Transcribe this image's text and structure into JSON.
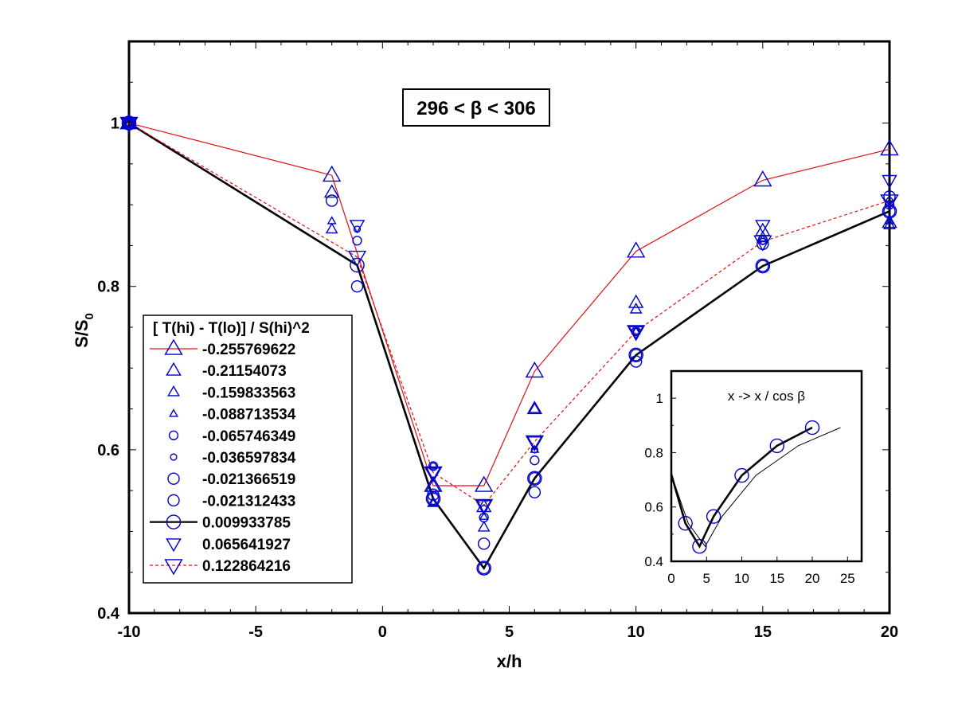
{
  "chart_data": [
    {
      "type": "scatter",
      "xlabel": "x/h",
      "ylabel": "S/S",
      "ylabel_sub": "0",
      "xlim": [
        -10,
        20
      ],
      "ylim": [
        0.4,
        1.1
      ],
      "xticks": [
        -10,
        -5,
        0,
        5,
        10,
        15,
        20
      ],
      "yticks": [
        0.4,
        0.6,
        0.8,
        1
      ],
      "ytick_labels": [
        "0.4",
        "0.6",
        "0.8",
        "1"
      ],
      "annotation": "296 < β < 306",
      "legend_title": "[ T(hi) - T(lo)] / S(hi)^2",
      "legend_position": "center-left",
      "marker_color": "#0000cc",
      "series": [
        {
          "name": "-0.255769622",
          "marker": "triangle-up",
          "size": "large",
          "line": "solid",
          "line_color": "#e01010",
          "x": [
            -10,
            -2,
            2,
            4,
            6,
            10,
            15,
            20
          ],
          "y": [
            1.0,
            0.936,
            0.556,
            0.556,
            0.696,
            0.843,
            0.93,
            0.968
          ]
        },
        {
          "name": "-0.21154073",
          "marker": "triangle-up",
          "size": "medium",
          "line": "none",
          "x": [
            -10,
            -2,
            2,
            4,
            6,
            10,
            15,
            20
          ],
          "y": [
            1.0,
            0.915,
            0.555,
            0.53,
            0.65,
            0.78,
            0.868,
            0.878
          ]
        },
        {
          "name": "-0.159833563",
          "marker": "triangle-up",
          "size": "small",
          "line": "none",
          "x": [
            -10,
            -2,
            2,
            4,
            6,
            10,
            15,
            20
          ],
          "y": [
            1.0,
            0.87,
            0.535,
            0.505,
            0.65,
            0.772,
            0.86,
            0.875
          ]
        },
        {
          "name": "-0.088713534",
          "marker": "triangle-up",
          "size": "tiny",
          "line": "none",
          "x": [
            -10,
            -2,
            2,
            4,
            6,
            10,
            15,
            20
          ],
          "y": [
            1.0,
            0.88,
            0.535,
            0.518,
            0.6,
            0.745,
            0.858,
            0.88
          ]
        },
        {
          "name": "-0.065746349",
          "marker": "circle",
          "size": "small",
          "line": "none",
          "x": [
            -10,
            -1,
            2,
            4,
            6,
            10,
            15,
            20
          ],
          "y": [
            1.0,
            0.856,
            0.58,
            0.517,
            0.587,
            0.745,
            0.857,
            0.9
          ]
        },
        {
          "name": "-0.036597834",
          "marker": "circle",
          "size": "tiny",
          "line": "none",
          "x": [
            -10,
            -1,
            2,
            4,
            6,
            10,
            15,
            20
          ],
          "y": [
            1.0,
            0.87,
            0.58,
            0.528,
            0.6,
            0.745,
            0.855,
            0.905
          ]
        },
        {
          "name": "-0.021366519",
          "marker": "circle",
          "size": "medium",
          "line": "none",
          "x": [
            -10,
            -2,
            2,
            4,
            6,
            10,
            15,
            20
          ],
          "y": [
            1.0,
            0.905,
            0.545,
            0.485,
            0.548,
            0.708,
            0.852,
            0.91
          ]
        },
        {
          "name": "-0.021312433",
          "marker": "circle",
          "size": "medium",
          "line": "none",
          "x": [
            -10,
            -1,
            2,
            4,
            6,
            10,
            15,
            20
          ],
          "y": [
            1.0,
            0.8,
            0.54,
            0.455,
            0.565,
            0.716,
            0.825,
            0.892
          ]
        },
        {
          "name": "0.009933785",
          "marker": "circle",
          "size": "large",
          "line": "solid-thick",
          "line_color": "#000000",
          "x": [
            -10,
            -1,
            2,
            4,
            6,
            10,
            15,
            20
          ],
          "y": [
            1.0,
            0.826,
            0.54,
            0.455,
            0.565,
            0.716,
            0.825,
            0.892
          ]
        },
        {
          "name": "0.065641927",
          "marker": "triangle-down",
          "size": "medium",
          "line": "none",
          "x": [
            -10,
            -1,
            2,
            4,
            6,
            10,
            15,
            20
          ],
          "y": [
            1.0,
            0.875,
            0.572,
            0.532,
            0.61,
            0.745,
            0.875,
            0.93
          ]
        },
        {
          "name": "0.122864216",
          "marker": "triangle-down",
          "size": "large",
          "line": "dashed",
          "line_color": "#e01010",
          "x": [
            -10,
            -1,
            2,
            4,
            6,
            10,
            15,
            20
          ],
          "y": [
            1.0,
            0.836,
            0.572,
            0.532,
            0.61,
            0.745,
            0.855,
            0.905
          ]
        }
      ]
    },
    {
      "type": "line",
      "title": "x ->  x / cos β",
      "xlim": [
        0,
        27
      ],
      "ylim": [
        0.4,
        1.1
      ],
      "xticks": [
        0,
        5,
        10,
        15,
        20,
        25
      ],
      "yticks": [
        0.4,
        0.6,
        0.8,
        1
      ],
      "ytick_labels": [
        "0.4",
        "0.6",
        "0.8",
        "1"
      ],
      "series": [
        {
          "line": "thick",
          "marker": "circle",
          "x": [
            0,
            2,
            4,
            6,
            10,
            15,
            20
          ],
          "y": [
            0.72,
            0.54,
            0.455,
            0.565,
            0.716,
            0.825,
            0.892
          ]
        },
        {
          "line": "thin",
          "marker": "none",
          "x": [
            0,
            2.4,
            4.8,
            7.2,
            12,
            18,
            24
          ],
          "y": [
            0.72,
            0.54,
            0.455,
            0.565,
            0.716,
            0.825,
            0.892
          ]
        }
      ]
    }
  ]
}
